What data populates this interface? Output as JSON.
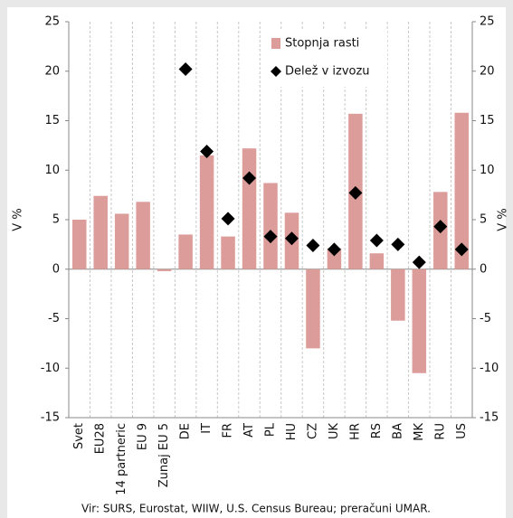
{
  "chart_data": {
    "type": "bar-scatter",
    "y_label": "V %",
    "y2_label": "V %",
    "source": "Vir: SURS, Eurostat, WIIW, U.S. Census Bureau; preračuni UMAR.",
    "categories": [
      "Svet",
      "EU28",
      "14 partneric",
      "EU 9",
      "Zunaj EU 5",
      "DE",
      "IT",
      "FR",
      "AT",
      "PL",
      "HU",
      "CZ",
      "UK",
      "HR",
      "RS",
      "BA",
      "MK",
      "RU",
      "US"
    ],
    "series": [
      {
        "name": "Stopnja rasti",
        "kind": "bar",
        "color": "#dc9c9a",
        "values": [
          5.0,
          7.4,
          5.6,
          6.8,
          -0.2,
          3.5,
          11.5,
          3.3,
          12.2,
          8.7,
          5.7,
          -8.0,
          2.1,
          15.7,
          1.6,
          -5.2,
          -10.5,
          7.8,
          15.8
        ]
      },
      {
        "name": "Delež v izvozu",
        "kind": "diamond",
        "color": "#000000",
        "values": [
          null,
          null,
          null,
          null,
          null,
          20.2,
          11.9,
          5.1,
          9.2,
          3.3,
          3.1,
          2.4,
          2.0,
          7.7,
          2.9,
          2.5,
          0.7,
          4.3,
          2.0
        ]
      }
    ],
    "ylim": [
      -15,
      25
    ],
    "yticks": [
      -15,
      -10,
      -5,
      0,
      5,
      10,
      15,
      20,
      25
    ],
    "y2lim": [
      -15,
      25
    ],
    "y2ticks": [
      -15,
      -10,
      -5,
      0,
      5,
      10,
      15,
      20,
      25
    ],
    "grid": true,
    "legend": "upper-right"
  }
}
